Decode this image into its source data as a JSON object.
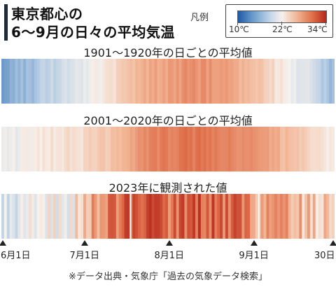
{
  "title": {
    "line1": "東京都心の",
    "line2": "6〜9月の日々の平均気温"
  },
  "legend": {
    "title": "凡例",
    "min_label": "10℃",
    "mid_label": "22℃",
    "max_label": "34℃",
    "min": 10,
    "mid": 22,
    "max": 34,
    "colors": [
      "#1f5aa6",
      "#f6f1ec",
      "#b8271b"
    ]
  },
  "chart_data": [
    {
      "type": "heatmap",
      "title": "1901〜1920年の日ごとの平均値",
      "x_unit": "day (Jun 1 – Sep 30)",
      "anchors": [
        {
          "day": 1,
          "value": 15.5
        },
        {
          "day": 10,
          "value": 17
        },
        {
          "day": 20,
          "value": 19
        },
        {
          "day": 30,
          "value": 21
        },
        {
          "day": 40,
          "value": 23
        },
        {
          "day": 55,
          "value": 26.5
        },
        {
          "day": 70,
          "value": 28
        },
        {
          "day": 80,
          "value": 27.5
        },
        {
          "day": 95,
          "value": 25
        },
        {
          "day": 105,
          "value": 22
        },
        {
          "day": 115,
          "value": 19.5
        },
        {
          "day": 122,
          "value": 16.5
        }
      ]
    },
    {
      "type": "heatmap",
      "title": "2001〜2020年の日ごとの平均値",
      "x_unit": "day (Jun 1 – Sep 30)",
      "anchors": [
        {
          "day": 1,
          "value": 21
        },
        {
          "day": 10,
          "value": 22
        },
        {
          "day": 20,
          "value": 23
        },
        {
          "day": 30,
          "value": 23.5
        },
        {
          "day": 40,
          "value": 25
        },
        {
          "day": 55,
          "value": 28.5
        },
        {
          "day": 70,
          "value": 29.5
        },
        {
          "day": 80,
          "value": 29
        },
        {
          "day": 95,
          "value": 27.5
        },
        {
          "day": 105,
          "value": 25.5
        },
        {
          "day": 115,
          "value": 23.5
        },
        {
          "day": 122,
          "value": 22
        }
      ]
    },
    {
      "type": "heatmap",
      "title": "2023年に観測された値",
      "x_unit": "day (Jun 1 – Sep 30)",
      "anchors": [
        {
          "day": 1,
          "value": 19
        },
        {
          "day": 8,
          "value": 20.5
        },
        {
          "day": 15,
          "value": 23
        },
        {
          "day": 22,
          "value": 21
        },
        {
          "day": 30,
          "value": 24
        },
        {
          "day": 38,
          "value": 29
        },
        {
          "day": 45,
          "value": 30.5
        },
        {
          "day": 55,
          "value": 31.5
        },
        {
          "day": 62,
          "value": 30
        },
        {
          "day": 70,
          "value": 31
        },
        {
          "day": 80,
          "value": 30.5
        },
        {
          "day": 90,
          "value": 29.5
        },
        {
          "day": 95,
          "value": 26
        },
        {
          "day": 105,
          "value": 28
        },
        {
          "day": 112,
          "value": 25
        },
        {
          "day": 118,
          "value": 24
        },
        {
          "day": 122,
          "value": 26
        }
      ]
    }
  ],
  "axis": {
    "ticks": [
      {
        "label": "6月1日",
        "day": 1
      },
      {
        "label": "7月1日",
        "day": 31
      },
      {
        "label": "8月1日",
        "day": 62
      },
      {
        "label": "9月1日",
        "day": 93
      },
      {
        "label": "30日",
        "day": 122
      }
    ]
  },
  "source": "※データ出典・気象庁「過去の気象データ検索」"
}
